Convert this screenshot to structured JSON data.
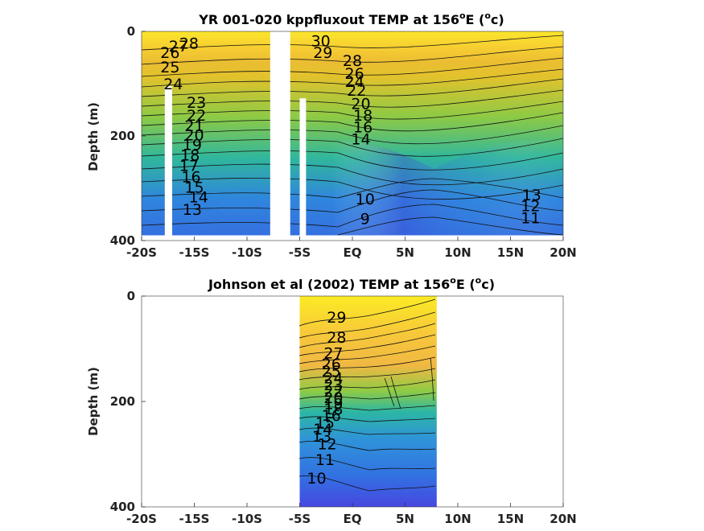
{
  "chart_data": [
    {
      "type": "heatmap",
      "title_main": "YR 001-020 kppfluxout TEMP at 156",
      "title_sup": "o",
      "title_tail": "E (",
      "title_unit_sup": "o",
      "title_unit": "c)",
      "ylabel": "Depth (m)",
      "xlim": [
        -20,
        20
      ],
      "ylim": [
        0,
        400
      ],
      "x_ticks": [
        -20,
        -15,
        -10,
        -5,
        0,
        5,
        10,
        15,
        20
      ],
      "x_tick_labels": [
        "-20S",
        "-15S",
        "-10S",
        "-5S",
        "EQ",
        "5N",
        "10N",
        "15N",
        "20N"
      ],
      "y_ticks": [
        0,
        200,
        400
      ],
      "y_tick_labels": [
        "0",
        "200",
        "400"
      ],
      "data_extent": {
        "x": [
          -20,
          20
        ],
        "depth": [
          0,
          390
        ]
      },
      "missing_columns": [
        {
          "x": [
            -17.8,
            -17.1
          ],
          "depth_from": 105
        },
        {
          "x": [
            -7.8,
            -5.9
          ],
          "depth_from": 0
        },
        {
          "x": [
            -5.0,
            -4.4
          ],
          "depth_from": 128
        }
      ],
      "contour_labels": [
        {
          "text": "28",
          "x": -15.5,
          "depth": 22
        },
        {
          "text": "27",
          "x": -16.5,
          "depth": 28
        },
        {
          "text": "26",
          "x": -17.3,
          "depth": 40
        },
        {
          "text": "25",
          "x": -17.3,
          "depth": 68
        },
        {
          "text": "24",
          "x": -17.0,
          "depth": 100
        },
        {
          "text": "23",
          "x": -14.8,
          "depth": 135
        },
        {
          "text": "22",
          "x": -14.8,
          "depth": 160
        },
        {
          "text": "21",
          "x": -15.0,
          "depth": 180
        },
        {
          "text": "20",
          "x": -15.0,
          "depth": 198
        },
        {
          "text": "19",
          "x": -15.2,
          "depth": 216
        },
        {
          "text": "18",
          "x": -15.4,
          "depth": 236
        },
        {
          "text": "17",
          "x": -15.5,
          "depth": 256
        },
        {
          "text": "16",
          "x": -15.3,
          "depth": 278
        },
        {
          "text": "15",
          "x": -15.0,
          "depth": 298
        },
        {
          "text": "14",
          "x": -14.6,
          "depth": 316
        },
        {
          "text": "13",
          "x": -15.2,
          "depth": 340
        },
        {
          "text": "30",
          "x": -3.0,
          "depth": 18
        },
        {
          "text": "29",
          "x": -2.8,
          "depth": 40
        },
        {
          "text": "28",
          "x": 0.0,
          "depth": 55
        },
        {
          "text": "26",
          "x": 0.2,
          "depth": 80
        },
        {
          "text": "24",
          "x": 0.2,
          "depth": 95
        },
        {
          "text": "22",
          "x": 0.4,
          "depth": 112
        },
        {
          "text": "20",
          "x": 0.8,
          "depth": 138
        },
        {
          "text": "18",
          "x": 1.0,
          "depth": 160
        },
        {
          "text": "16",
          "x": 1.0,
          "depth": 182
        },
        {
          "text": "14",
          "x": 0.8,
          "depth": 205
        },
        {
          "text": "10",
          "x": 1.2,
          "depth": 320
        },
        {
          "text": "9",
          "x": 1.2,
          "depth": 358
        },
        {
          "text": "13",
          "x": 17.0,
          "depth": 312
        },
        {
          "text": "12",
          "x": 16.9,
          "depth": 333
        },
        {
          "text": "11",
          "x": 16.9,
          "depth": 356
        }
      ]
    },
    {
      "type": "heatmap",
      "title_main": "Johnson et al (2002) TEMP at 156",
      "title_sup": "o",
      "title_tail": "E (",
      "title_unit_sup": "o",
      "title_unit": "c)",
      "ylabel": "Depth (m)",
      "xlim": [
        -20,
        20
      ],
      "ylim": [
        0,
        400
      ],
      "x_ticks": [
        -20,
        -15,
        -10,
        -5,
        0,
        5,
        10,
        15,
        20
      ],
      "x_tick_labels": [
        "-20S",
        "-15S",
        "-10S",
        "-5S",
        "EQ",
        "5N",
        "10N",
        "15N",
        "20N"
      ],
      "y_ticks": [
        0,
        200,
        400
      ],
      "y_tick_labels": [
        "0",
        "200",
        "400"
      ],
      "data_extent": {
        "x": [
          -5,
          8
        ],
        "depth": [
          0,
          400
        ]
      },
      "missing_columns": [],
      "contour_labels": [
        {
          "text": "29",
          "x": -1.5,
          "depth": 40
        },
        {
          "text": "28",
          "x": -1.5,
          "depth": 78
        },
        {
          "text": "27",
          "x": -1.8,
          "depth": 108
        },
        {
          "text": "26",
          "x": -2.0,
          "depth": 128
        },
        {
          "text": "25",
          "x": -2.0,
          "depth": 142
        },
        {
          "text": "24",
          "x": -1.8,
          "depth": 155
        },
        {
          "text": "23",
          "x": -1.8,
          "depth": 168
        },
        {
          "text": "22",
          "x": -1.8,
          "depth": 180
        },
        {
          "text": "20",
          "x": -1.8,
          "depth": 192
        },
        {
          "text": "19",
          "x": -1.8,
          "depth": 204
        },
        {
          "text": "18",
          "x": -1.8,
          "depth": 214
        },
        {
          "text": "16",
          "x": -2.0,
          "depth": 226
        },
        {
          "text": "15",
          "x": -2.6,
          "depth": 240
        },
        {
          "text": "14",
          "x": -2.8,
          "depth": 252
        },
        {
          "text": "13",
          "x": -2.9,
          "depth": 266
        },
        {
          "text": "12",
          "x": -2.4,
          "depth": 280
        },
        {
          "text": "11",
          "x": -2.6,
          "depth": 310
        },
        {
          "text": "10",
          "x": -3.4,
          "depth": 345
        }
      ]
    }
  ],
  "colors": {
    "warm": "#fae026",
    "orange": "#f7b33a",
    "green": "#7cc94a",
    "teal": "#2ab7a6",
    "blue": "#2f86dd",
    "deep": "#4747e0"
  }
}
